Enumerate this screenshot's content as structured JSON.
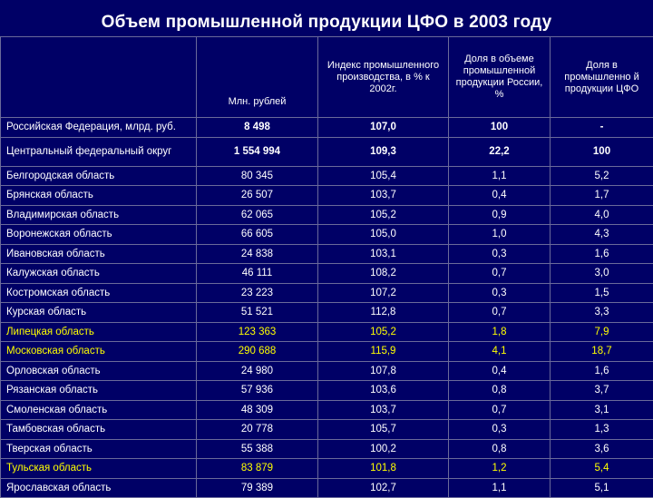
{
  "title": "Объем промышленной продукции ЦФО в 2003 году",
  "columns": [
    "",
    "Млн. рублей",
    "Индекс промышленного производства, в % к 2002г.",
    "Доля в объеме промышленной продукции России, %",
    "Доля в промышленно й продукции ЦФО"
  ],
  "rows": [
    {
      "name": "Российская Федерация, млрд. руб.",
      "v1": "8 498",
      "v2": "107,0",
      "v3": "100",
      "v4": "-"
    },
    {
      "name": "Центральный федеральный округ",
      "v1": "1 554 994",
      "v2": "109,3",
      "v3": "22,2",
      "v4": "100"
    },
    {
      "name": "Белгородская область",
      "v1": "80 345",
      "v2": "105,4",
      "v3": "1,1",
      "v4": "5,2"
    },
    {
      "name": "Брянская область",
      "v1": "26 507",
      "v2": "103,7",
      "v3": "0,4",
      "v4": "1,7"
    },
    {
      "name": "Владимирская область",
      "v1": "62 065",
      "v2": "105,2",
      "v3": "0,9",
      "v4": "4,0"
    },
    {
      "name": "Воронежская область",
      "v1": "66 605",
      "v2": "105,0",
      "v3": "1,0",
      "v4": "4,3"
    },
    {
      "name": "Ивановская область",
      "v1": "24 838",
      "v2": "103,1",
      "v3": "0,3",
      "v4": "1,6"
    },
    {
      "name": "Калужская область",
      "v1": "46 111",
      "v2": "108,2",
      "v3": "0,7",
      "v4": "3,0"
    },
    {
      "name": "Костромская область",
      "v1": "23 223",
      "v2": "107,2",
      "v3": "0,3",
      "v4": "1,5"
    },
    {
      "name": "Курская область",
      "v1": "51 521",
      "v2": "112,8",
      "v3": "0,7",
      "v4": "3,3"
    },
    {
      "name": "Липецкая область",
      "v1": "123 363",
      "v2": "105,2",
      "v3": "1,8",
      "v4": "7,9"
    },
    {
      "name": "Московская область",
      "v1": "290 688",
      "v2": "115,9",
      "v3": "4,1",
      "v4": "18,7"
    },
    {
      "name": "Орловская область",
      "v1": "24 980",
      "v2": "107,8",
      "v3": "0,4",
      "v4": "1,6"
    },
    {
      "name": "Рязанская область",
      "v1": "57 936",
      "v2": "103,6",
      "v3": "0,8",
      "v4": "3,7"
    },
    {
      "name": "Смоленская область",
      "v1": "48 309",
      "v2": "103,7",
      "v3": "0,7",
      "v4": "3,1"
    },
    {
      "name": "Тамбовская область",
      "v1": "20 778",
      "v2": "105,7",
      "v3": "0,3",
      "v4": "1,3"
    },
    {
      "name": "Тверская область",
      "v1": "55 388",
      "v2": "100,2",
      "v3": "0,8",
      "v4": "3,6"
    },
    {
      "name": "Тульская область",
      "v1": "83 879",
      "v2": "101,8",
      "v3": "1,2",
      "v4": "5,4"
    },
    {
      "name": "Ярославская область",
      "v1": "79 389",
      "v2": "102,7",
      "v3": "1,1",
      "v4": "5,1"
    }
  ],
  "colors": {
    "background": "#000066",
    "text": "#ffffff",
    "highlight": "#ffff00",
    "grid": "#6a6a9a"
  }
}
